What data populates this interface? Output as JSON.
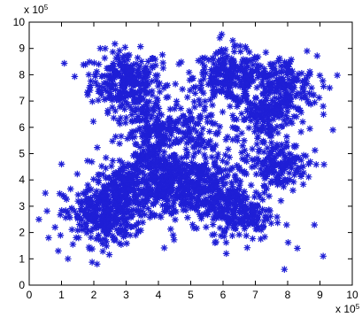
{
  "chart_data": {
    "type": "scatter",
    "title": "",
    "xlabel": "",
    "ylabel": "",
    "xlim": [
      0,
      10
    ],
    "ylim": [
      0,
      10
    ],
    "x_exponent_label": "x 10",
    "x_exponent_sup": "5",
    "y_exponent_label": "x 10",
    "y_exponent_sup": "5",
    "x_ticks": [
      0,
      1,
      2,
      3,
      4,
      5,
      6,
      7,
      8,
      9,
      10
    ],
    "y_ticks": [
      0,
      1,
      2,
      3,
      4,
      5,
      6,
      7,
      8,
      9,
      10
    ],
    "x_tick_labels": [
      "0",
      "1",
      "2",
      "3",
      "4",
      "5",
      "6",
      "7",
      "8",
      "9",
      "10"
    ],
    "y_tick_labels": [
      "0",
      "1",
      "2",
      "3",
      "4",
      "5",
      "6",
      "7",
      "8",
      "9",
      "10"
    ],
    "grid": false,
    "marker": "asterisk",
    "marker_color": "#1f1fd6",
    "clusters": [
      {
        "cx": 3.0,
        "cy": 7.8,
        "sx": 0.55,
        "sy": 0.55,
        "n": 260
      },
      {
        "cx": 6.2,
        "cy": 7.9,
        "sx": 0.55,
        "sy": 0.5,
        "n": 240
      },
      {
        "cx": 7.8,
        "cy": 7.5,
        "sx": 0.55,
        "sy": 0.6,
        "n": 230
      },
      {
        "cx": 2.2,
        "cy": 2.6,
        "sx": 0.55,
        "sy": 0.55,
        "n": 280
      },
      {
        "cx": 3.2,
        "cy": 3.4,
        "sx": 0.6,
        "sy": 0.5,
        "n": 200
      },
      {
        "cx": 4.3,
        "cy": 4.1,
        "sx": 0.5,
        "sy": 0.5,
        "n": 220
      },
      {
        "cx": 5.4,
        "cy": 3.6,
        "sx": 0.6,
        "sy": 0.6,
        "n": 260
      },
      {
        "cx": 6.6,
        "cy": 2.7,
        "sx": 0.5,
        "sy": 0.5,
        "n": 180
      },
      {
        "cx": 7.7,
        "cy": 4.6,
        "sx": 0.45,
        "sy": 0.45,
        "n": 150
      },
      {
        "cx": 3.6,
        "cy": 6.2,
        "sx": 0.4,
        "sy": 0.5,
        "n": 110
      },
      {
        "cx": 7.2,
        "cy": 6.4,
        "sx": 0.45,
        "sy": 0.45,
        "n": 110
      },
      {
        "cx": 4.9,
        "cy": 5.9,
        "sx": 0.5,
        "sy": 0.45,
        "n": 90
      },
      {
        "cx": 5.0,
        "cy": 5.0,
        "sx": 1.6,
        "sy": 1.6,
        "n": 200
      }
    ],
    "diagonal_band": {
      "x0": 2.2,
      "y0": 3.4,
      "x1": 4.4,
      "y1": 5.7,
      "spread": 0.15,
      "n": 110
    },
    "outliers": [
      [
        0.3,
        2.5
      ],
      [
        0.5,
        3.5
      ],
      [
        0.8,
        2.2
      ],
      [
        1.0,
        4.6
      ],
      [
        0.6,
        1.8
      ],
      [
        8.6,
        8.9
      ],
      [
        9.1,
        6.8
      ],
      [
        9.4,
        5.9
      ],
      [
        9.3,
        7.5
      ],
      [
        8.3,
        1.4
      ],
      [
        1.2,
        1.0
      ],
      [
        2.1,
        0.8
      ],
      [
        3.3,
        1.9
      ],
      [
        6.1,
        1.2
      ],
      [
        7.9,
        0.6
      ],
      [
        2.2,
        9.0
      ],
      [
        5.9,
        9.4
      ],
      [
        6.3,
        9.3
      ],
      [
        9.1,
        1.1
      ],
      [
        0.9,
        1.3
      ]
    ]
  }
}
